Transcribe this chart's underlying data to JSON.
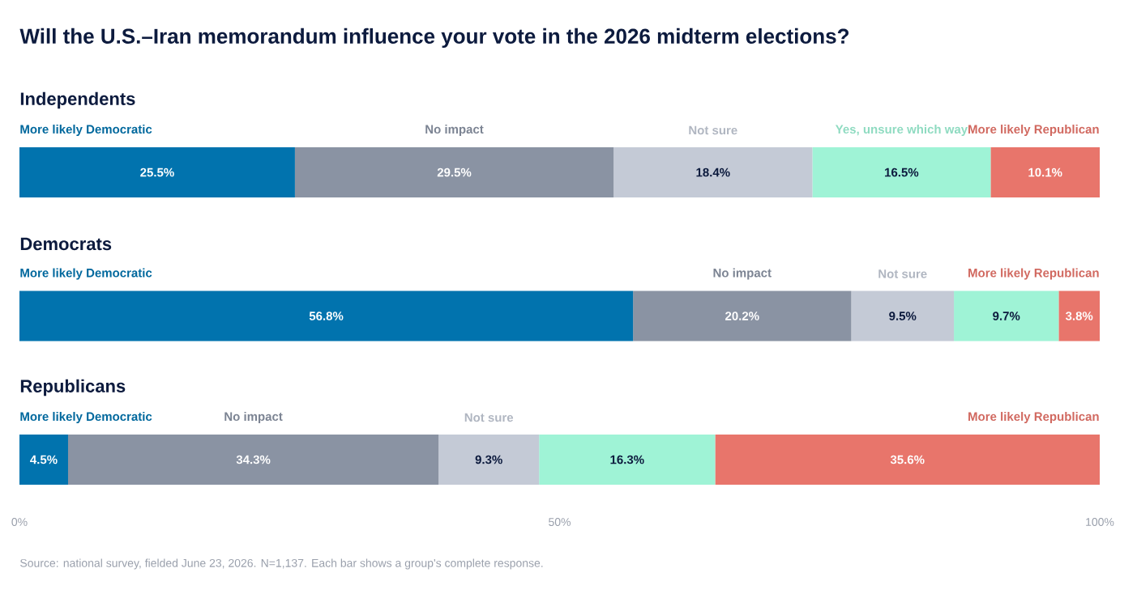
{
  "chart_data": [
    {
      "type": "bar",
      "orientation": "horizontal",
      "stacked": true,
      "title": "Will the U.S.–Iran memorandum influence your vote in the 2026 midterm elections?",
      "categories": [
        "Independents"
      ],
      "xlim": [
        0,
        100
      ],
      "series": [
        {
          "name": "More likely Democratic",
          "color": "#0173ae",
          "values": [
            25.5
          ],
          "value_labels": [
            "25.5%"
          ]
        },
        {
          "name": "No impact",
          "color": "#8a93a3",
          "values": [
            29.5
          ],
          "value_labels": [
            "29.5%"
          ]
        },
        {
          "name": "Not sure",
          "color": "#c4cad6",
          "values": [
            18.4
          ],
          "value_labels": [
            "18.4%"
          ]
        },
        {
          "name": "Yes, unsure which way",
          "color": "#9ff3d6",
          "values": [
            16.5
          ],
          "value_labels": [
            "16.5%"
          ]
        },
        {
          "name": "More likely Republican",
          "color": "#e8756b",
          "values": [
            10.1
          ],
          "value_labels": [
            "10.1%"
          ]
        }
      ]
    },
    {
      "type": "bar",
      "orientation": "horizontal",
      "stacked": true,
      "categories": [
        "Democrats"
      ],
      "xlim": [
        0,
        100
      ],
      "series": [
        {
          "name": "More likely Democratic",
          "color": "#0173ae",
          "values": [
            56.8
          ],
          "value_labels": [
            "56.8%"
          ]
        },
        {
          "name": "No impact",
          "color": "#8a93a3",
          "values": [
            20.2
          ],
          "value_labels": [
            "20.2%"
          ]
        },
        {
          "name": "Not sure",
          "color": "#c4cad6",
          "values": [
            9.5
          ],
          "value_labels": [
            "9.5%"
          ]
        },
        {
          "color": "#9ff3d6",
          "values": [
            9.7
          ],
          "value_labels": [
            "9.7%"
          ]
        },
        {
          "name": "More likely Republican",
          "color": "#e8756b",
          "values": [
            3.8
          ],
          "value_labels": [
            "3.8%"
          ]
        }
      ]
    },
    {
      "type": "bar",
      "orientation": "horizontal",
      "stacked": true,
      "categories": [
        "Republicans"
      ],
      "xlim": [
        0,
        100
      ],
      "xticks": [
        {
          "value": 0,
          "label": "0%"
        },
        {
          "value": 50,
          "label": "50%"
        },
        {
          "value": 100,
          "label": "100%"
        }
      ],
      "annotations": [
        "Source: national survey, fielded June 23, 2026. N=1,137. Each bar shows a group's complete response."
      ],
      "series": [
        {
          "name": "More likely Democratic",
          "color": "#0173ae",
          "values": [
            4.5
          ],
          "value_labels": [
            "4.5%"
          ]
        },
        {
          "name": "No impact",
          "color": "#8a93a3",
          "values": [
            34.3
          ],
          "value_labels": [
            "34.3%"
          ]
        },
        {
          "name": "Not sure",
          "color": "#c4cad6",
          "values": [
            9.3
          ],
          "value_labels": [
            "9.3%"
          ]
        },
        {
          "color": "#9ff3d6",
          "values": [
            16.3
          ],
          "value_labels": [
            "16.3%"
          ]
        },
        {
          "name": "More likely Republican",
          "color": "#e8756b",
          "values": [
            35.6
          ],
          "value_labels": [
            "35.6%"
          ]
        }
      ]
    }
  ]
}
